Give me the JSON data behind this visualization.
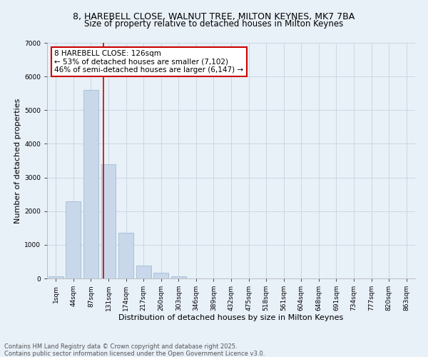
{
  "title_line1": "8, HAREBELL CLOSE, WALNUT TREE, MILTON KEYNES, MK7 7BA",
  "title_line2": "Size of property relative to detached houses in Milton Keynes",
  "xlabel": "Distribution of detached houses by size in Milton Keynes",
  "ylabel": "Number of detached properties",
  "bar_labels": [
    "1sqm",
    "44sqm",
    "87sqm",
    "131sqm",
    "174sqm",
    "217sqm",
    "260sqm",
    "303sqm",
    "346sqm",
    "389sqm",
    "432sqm",
    "475sqm",
    "518sqm",
    "561sqm",
    "604sqm",
    "648sqm",
    "691sqm",
    "734sqm",
    "777sqm",
    "820sqm",
    "863sqm"
  ],
  "bar_values": [
    70,
    2300,
    5600,
    3400,
    1350,
    380,
    160,
    60,
    8,
    4,
    1,
    0,
    0,
    0,
    0,
    0,
    0,
    0,
    0,
    0,
    0
  ],
  "bar_color": "#c8d8ea",
  "bar_edge_color": "#9ab4cc",
  "bar_width": 0.85,
  "red_line_x": 2.72,
  "annotation_text": "8 HAREBELL CLOSE: 126sqm\n← 53% of detached houses are smaller (7,102)\n46% of semi-detached houses are larger (6,147) →",
  "annotation_box_color": "#ffffff",
  "annotation_edge_color": "#cc0000",
  "ylim": [
    0,
    7000
  ],
  "yticks": [
    0,
    1000,
    2000,
    3000,
    4000,
    5000,
    6000,
    7000
  ],
  "grid_color": "#c8d4e0",
  "background_color": "#e8f0f8",
  "footer_line1": "Contains HM Land Registry data © Crown copyright and database right 2025.",
  "footer_line2": "Contains public sector information licensed under the Open Government Licence v3.0.",
  "title_fontsize": 9,
  "subtitle_fontsize": 8.5,
  "axis_label_fontsize": 8,
  "tick_fontsize": 6.5,
  "annotation_fontsize": 7.5,
  "footer_fontsize": 6
}
